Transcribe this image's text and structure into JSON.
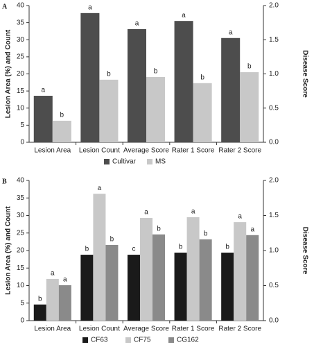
{
  "chart_data": [
    {
      "type": "bar",
      "panel_label": "A",
      "y_label": "Lesion Area (%) and Count",
      "y2_label": "Disease Score",
      "categories": [
        "Lesion Area",
        "Lesion Count",
        "Average Score",
        "Rater 1 Score",
        "Rater 2 Score"
      ],
      "series": [
        {
          "name": "Cultivar",
          "color": "#4d4d4d",
          "values": [
            13.6,
            37.8,
            33.1,
            35.5,
            30.5
          ],
          "letters": [
            "a",
            "a",
            "a",
            "a",
            "a"
          ]
        },
        {
          "name": "MS",
          "color": "#c8c8c8",
          "values": [
            6.3,
            18.3,
            19.1,
            17.3,
            20.5
          ],
          "letters": [
            "b",
            "b",
            "b",
            "b",
            "b"
          ]
        }
      ],
      "ylim": [
        0,
        40
      ],
      "yticks": [
        0,
        5,
        10,
        15,
        20,
        25,
        30,
        35,
        40
      ],
      "y2lim": [
        0,
        2
      ],
      "y2ticks": [
        {
          "value": 0,
          "label": "0.0"
        },
        {
          "value": 0.5,
          "label": "0.5"
        },
        {
          "value": 1,
          "label": "1.0"
        },
        {
          "value": 1.5,
          "label": "1.5"
        },
        {
          "value": 2,
          "label": "2.0"
        }
      ],
      "grid": false,
      "legend": "bottom"
    },
    {
      "type": "bar",
      "panel_label": "B",
      "y_label": "Lesion Area (%) and Count",
      "y2_label": "Disease Score",
      "categories": [
        "Lesion Area",
        "Lesion Count",
        "Average Score",
        "Rater 1 Score",
        "Rater 2 Score"
      ],
      "series": [
        {
          "name": "CF63",
          "color": "#1a1a1a",
          "values": [
            4.6,
            18.8,
            18.8,
            19.4,
            19.4
          ],
          "letters": [
            "b",
            "b",
            "c",
            "b",
            "b"
          ]
        },
        {
          "name": "CF75",
          "color": "#c8c8c8",
          "values": [
            11.9,
            36.2,
            29.3,
            29.5,
            28.1
          ],
          "letters": [
            "a",
            "a",
            "a",
            "a",
            "a"
          ]
        },
        {
          "name": "CG162",
          "color": "#8a8a8a",
          "values": [
            10.1,
            21.6,
            24.6,
            23.2,
            24.4
          ],
          "letters": [
            "a",
            "b",
            "b",
            "b",
            "a"
          ]
        }
      ],
      "ylim": [
        0,
        40
      ],
      "yticks": [
        0,
        5,
        10,
        15,
        20,
        25,
        30,
        35,
        40
      ],
      "y2lim": [
        0,
        2
      ],
      "y2ticks": [
        {
          "value": 0,
          "label": "0.0"
        },
        {
          "value": 0.5,
          "label": "0.5"
        },
        {
          "value": 1,
          "label": "1.0"
        },
        {
          "value": 1.5,
          "label": "1.5"
        },
        {
          "value": 2,
          "label": "2.0"
        }
      ],
      "grid": false,
      "legend": "bottom"
    }
  ]
}
